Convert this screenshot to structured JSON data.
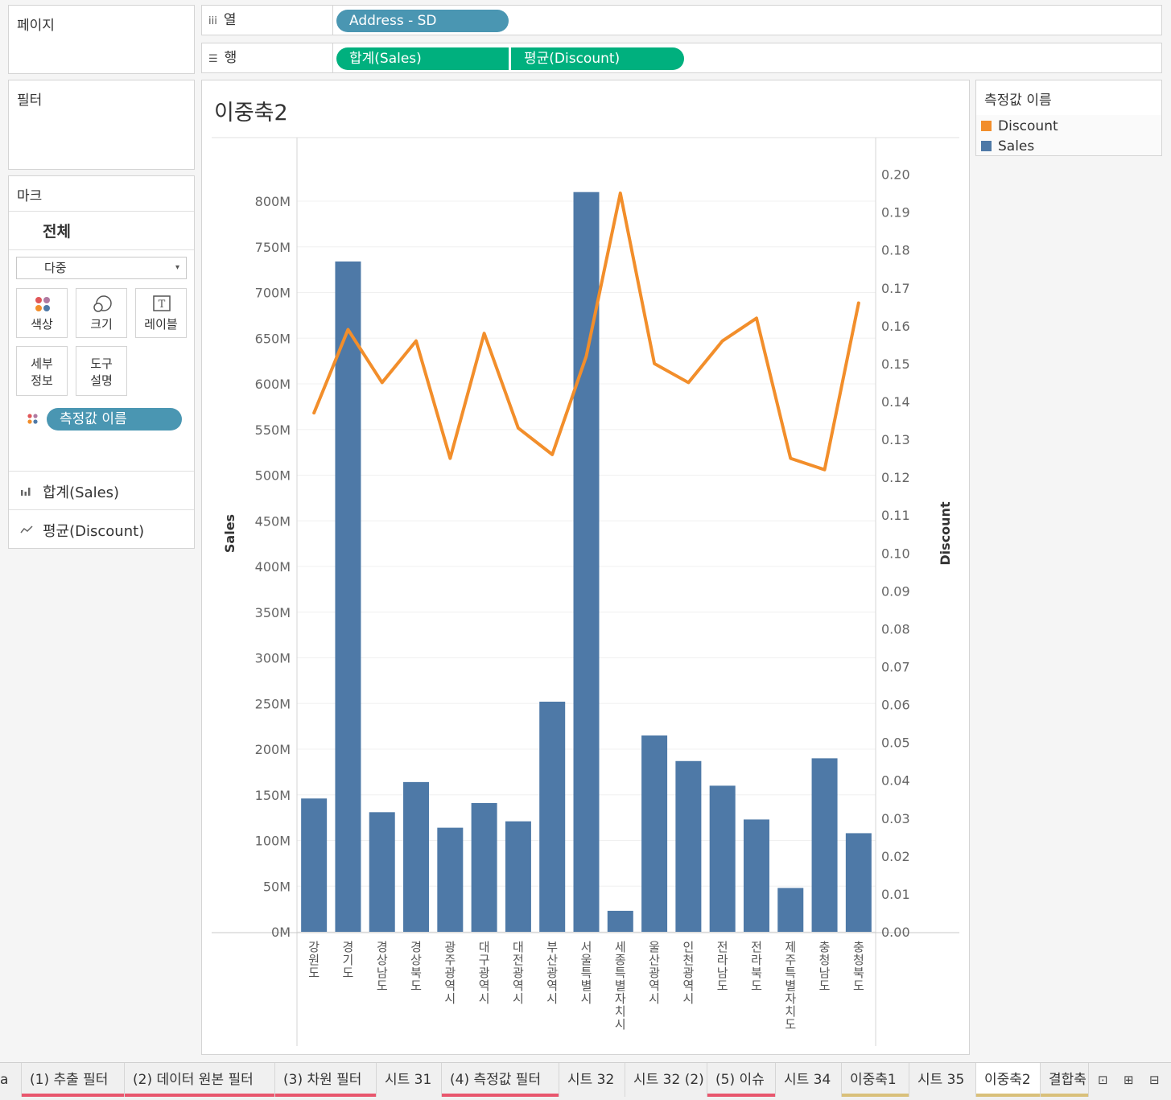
{
  "left": {
    "pages_label": "페이지",
    "filters_label": "필터",
    "marks_label": "마크",
    "marks_all": "전체",
    "mark_type": "다중",
    "buttons": {
      "color": "색상",
      "size": "크기",
      "label": "레이블",
      "detail_1": "세부",
      "detail_2": "정보",
      "tooltip_1": "도구",
      "tooltip_2": "설명"
    },
    "color_pill": "측정값 이름",
    "measures": [
      "합계(Sales)",
      "평균(Discount)"
    ]
  },
  "shelves": {
    "columns_label": "열",
    "columns_pill": "Address - SD",
    "rows_label": "행",
    "rows_pills": [
      "합계(Sales)",
      "평균(Discount)"
    ]
  },
  "view": {
    "title": "이중축2"
  },
  "legend": {
    "title": "측정값 이름",
    "items": [
      {
        "name": "Discount",
        "color": "#f28e2b"
      },
      {
        "name": "Sales",
        "color": "#4e79a7"
      }
    ]
  },
  "chart_data": {
    "type": "bar",
    "title": "이중축2",
    "categories": [
      "강원도",
      "경기도",
      "경상남도",
      "경상북도",
      "광주광역시",
      "대구광역시",
      "대전광역시",
      "부산광역시",
      "서울특별시",
      "세종특별자치시",
      "울산광역시",
      "인천광역시",
      "전라남도",
      "전라북도",
      "제주특별자치도",
      "충청남도",
      "충청북도"
    ],
    "series": [
      {
        "name": "Sales",
        "type": "bar",
        "axis": "left",
        "color": "#4e79a7",
        "values": [
          146,
          734,
          131,
          164,
          114,
          141,
          121,
          252,
          810,
          23,
          215,
          187,
          160,
          123,
          48,
          190,
          108
        ]
      },
      {
        "name": "Discount",
        "type": "line",
        "axis": "right",
        "color": "#f28e2b",
        "values": [
          0.137,
          0.159,
          0.145,
          0.156,
          0.125,
          0.158,
          0.133,
          0.126,
          0.152,
          0.195,
          0.15,
          0.145,
          0.156,
          0.162,
          0.125,
          0.122,
          0.166
        ]
      }
    ],
    "ylabel": "Sales",
    "y2label": "Discount",
    "ylim": [
      0,
      830
    ],
    "y2lim": [
      0,
      0.205
    ],
    "yticks": [
      "0M",
      "50M",
      "100M",
      "150M",
      "200M",
      "250M",
      "300M",
      "350M",
      "400M",
      "450M",
      "500M",
      "550M",
      "600M",
      "650M",
      "700M",
      "750M",
      "800M"
    ],
    "y2ticks": [
      "0.00",
      "0.01",
      "0.02",
      "0.03",
      "0.04",
      "0.05",
      "0.06",
      "0.07",
      "0.08",
      "0.09",
      "0.10",
      "0.11",
      "0.12",
      "0.13",
      "0.14",
      "0.15",
      "0.16",
      "0.17",
      "0.18",
      "0.19",
      "0.20"
    ],
    "grid": true
  },
  "tabs": [
    {
      "label": "a",
      "color": ""
    },
    {
      "label": "(1) 추출 필터",
      "color": "#e8566d"
    },
    {
      "label": "(2) 데이터 원본 필터",
      "color": "#e8566d"
    },
    {
      "label": "(3) 차원 필터",
      "color": "#e8566d"
    },
    {
      "label": "시트 31",
      "color": ""
    },
    {
      "label": "(4) 측정값 필터",
      "color": "#e8566d"
    },
    {
      "label": "시트 32",
      "color": ""
    },
    {
      "label": "시트 32 (2)",
      "color": ""
    },
    {
      "label": "(5) 이슈",
      "color": "#e8566d"
    },
    {
      "label": "시트 34",
      "color": ""
    },
    {
      "label": "이중축1",
      "color": "#d9c07a"
    },
    {
      "label": "시트 35",
      "color": ""
    },
    {
      "label": "이중축2",
      "color": "#d9c07a"
    },
    {
      "label": "결합축",
      "color": "#d9c07a"
    }
  ]
}
